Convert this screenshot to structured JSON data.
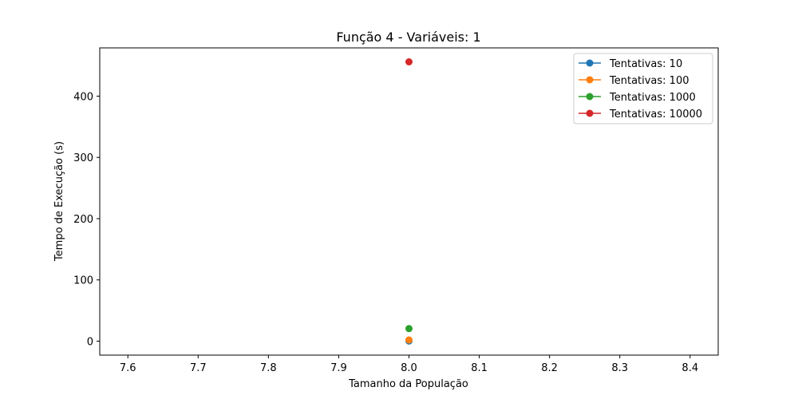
{
  "chart_data": {
    "type": "line",
    "title": "Função 4 - Variáveis: 1",
    "xlabel": "Tamanho da População",
    "ylabel": "Tempo de Execução (s)",
    "xlim": [
      7.56,
      8.44
    ],
    "ylim": [
      -22.8,
      478.8
    ],
    "x_ticks": [
      7.6,
      7.7,
      7.8,
      7.9,
      8.0,
      8.1,
      8.2,
      8.3,
      8.4
    ],
    "y_ticks": [
      0,
      100,
      200,
      300,
      400
    ],
    "grid": false,
    "legend_position": "upper right",
    "series": [
      {
        "name": "Tentativas: 10",
        "color": "#1f77b4",
        "x": [
          8.0
        ],
        "y": [
          0.2
        ]
      },
      {
        "name": "Tentativas: 100",
        "color": "#ff7f0e",
        "x": [
          8.0
        ],
        "y": [
          2.0
        ]
      },
      {
        "name": "Tentativas: 1000",
        "color": "#2ca02c",
        "x": [
          8.0
        ],
        "y": [
          20.5
        ]
      },
      {
        "name": "Tentativas: 10000",
        "color": "#d62728",
        "x": [
          8.0
        ],
        "y": [
          456.0
        ]
      }
    ]
  }
}
